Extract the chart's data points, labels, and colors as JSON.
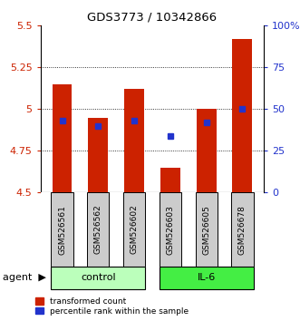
{
  "title": "GDS3773 / 10342866",
  "samples": [
    "GSM526561",
    "GSM526562",
    "GSM526602",
    "GSM526603",
    "GSM526605",
    "GSM526678"
  ],
  "bar_bottom": 4.5,
  "bar_tops": [
    5.15,
    4.95,
    5.12,
    4.65,
    5.0,
    5.42
  ],
  "blue_y": [
    4.93,
    4.9,
    4.93,
    4.84,
    4.92,
    5.0
  ],
  "ylim": [
    4.5,
    5.5
  ],
  "yticks_left": [
    4.5,
    4.75,
    5.0,
    5.25,
    5.5
  ],
  "ytick_left_labels": [
    "4.5",
    "4.75",
    "5",
    "5.25",
    "5.5"
  ],
  "yticks_right": [
    0,
    25,
    50,
    75,
    100
  ],
  "ytick_right_labels": [
    "0",
    "25",
    "50",
    "75",
    "100%"
  ],
  "bar_color": "#cc2200",
  "blue_color": "#2233cc",
  "control_color": "#bbffbb",
  "il6_color": "#44ee44",
  "sample_box_color": "#cccccc",
  "title_color": "black",
  "left_tick_color": "#cc2200",
  "right_tick_color": "#2233cc",
  "bar_width": 0.55,
  "control_label": "control",
  "il6_label": "IL-6",
  "agent_label": "agent",
  "legend1": "transformed count",
  "legend2": "percentile rank within the sample"
}
